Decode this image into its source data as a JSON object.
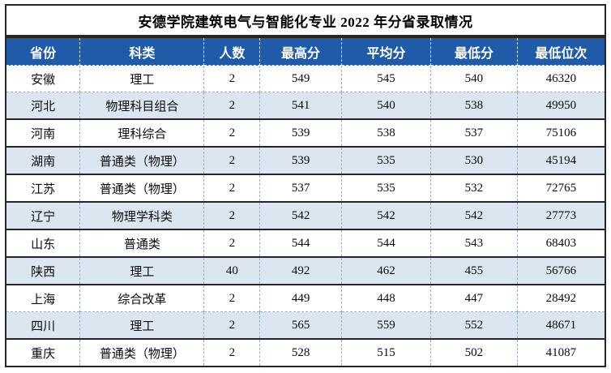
{
  "title": "安德学院建筑电气与智能化专业 2022 年分省录取情况",
  "table": {
    "columns": [
      "省份",
      "科类",
      "人数",
      "最高分",
      "平均分",
      "最低分",
      "最低位次"
    ],
    "rows": [
      [
        "安徽",
        "理工",
        "2",
        "549",
        "545",
        "540",
        "46320"
      ],
      [
        "河北",
        "物理科目组合",
        "2",
        "541",
        "540",
        "538",
        "49950"
      ],
      [
        "河南",
        "理科综合",
        "2",
        "539",
        "538",
        "537",
        "75106"
      ],
      [
        "湖南",
        "普通类（物理）",
        "2",
        "539",
        "535",
        "530",
        "45194"
      ],
      [
        "江苏",
        "普通类（物理）",
        "2",
        "537",
        "535",
        "532",
        "72765"
      ],
      [
        "辽宁",
        "物理学科类",
        "2",
        "542",
        "542",
        "542",
        "27773"
      ],
      [
        "山东",
        "普通类",
        "2",
        "544",
        "544",
        "543",
        "68403"
      ],
      [
        "陕西",
        "理工",
        "40",
        "492",
        "462",
        "455",
        "56766"
      ],
      [
        "上海",
        "综合改革",
        "2",
        "449",
        "448",
        "447",
        "28492"
      ],
      [
        "四川",
        "理工",
        "2",
        "565",
        "559",
        "552",
        "48671"
      ],
      [
        "重庆",
        "普通类（物理）",
        "2",
        "528",
        "515",
        "502",
        "41087"
      ]
    ]
  },
  "chart_data": {
    "type": "table",
    "title": "安德学院建筑电气与智能化专业 2022 年分省录取情况",
    "columns": [
      "省份",
      "科类",
      "人数",
      "最高分",
      "平均分",
      "最低分",
      "最低位次"
    ],
    "rows": [
      [
        "安徽",
        "理工",
        2,
        549,
        545,
        540,
        46320
      ],
      [
        "河北",
        "物理科目组合",
        2,
        541,
        540,
        538,
        49950
      ],
      [
        "河南",
        "理科综合",
        2,
        539,
        538,
        537,
        75106
      ],
      [
        "湖南",
        "普通类（物理）",
        2,
        539,
        535,
        530,
        45194
      ],
      [
        "江苏",
        "普通类（物理）",
        2,
        537,
        535,
        532,
        72765
      ],
      [
        "辽宁",
        "物理学科类",
        2,
        542,
        542,
        542,
        27773
      ],
      [
        "山东",
        "普通类",
        2,
        544,
        544,
        543,
        68403
      ],
      [
        "陕西",
        "理工",
        40,
        492,
        462,
        455,
        56766
      ],
      [
        "上海",
        "综合改革",
        2,
        449,
        448,
        447,
        28492
      ],
      [
        "四川",
        "理工",
        2,
        565,
        559,
        552,
        48671
      ],
      [
        "重庆",
        "普通类（物理）",
        2,
        528,
        515,
        502,
        41087
      ]
    ]
  },
  "colors": {
    "header_bg": "#1f5ba8",
    "header_text": "#ffffff",
    "row_bg": "#ffffff",
    "row_alt_bg": "#dce6f1",
    "border_dark": "#262626"
  }
}
